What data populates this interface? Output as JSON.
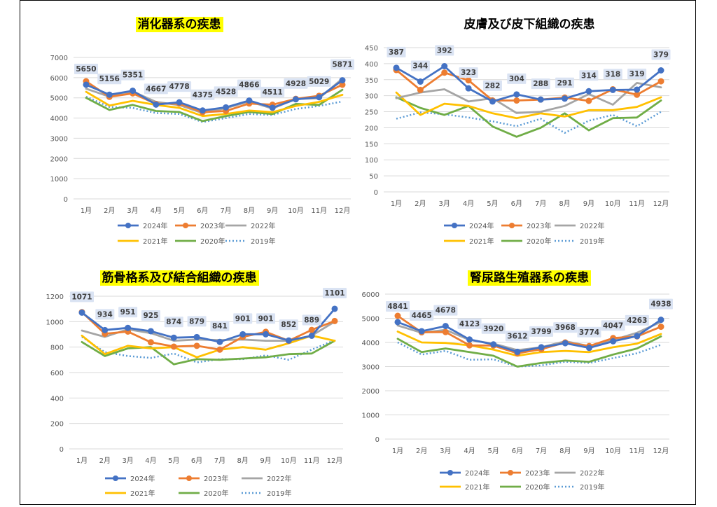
{
  "legend_styles": {
    "2024年": {
      "color": "#4472C4",
      "marker": true,
      "dash": false
    },
    "2023年": {
      "color": "#ED7D31",
      "marker": true,
      "dash": false
    },
    "2022年": {
      "color": "#A5A5A5",
      "marker": false,
      "dash": false
    },
    "2021年": {
      "color": "#FFC000",
      "marker": false,
      "dash": false
    },
    "2020年": {
      "color": "#70AD47",
      "marker": false,
      "dash": false
    },
    "2019年": {
      "color": "#5B9BD5",
      "marker": false,
      "dash": true
    }
  },
  "chart_data": [
    {
      "type": "line",
      "title": "消化器系の疾患",
      "title_highlight": "#FFFF00",
      "categories": [
        "1月",
        "2月",
        "3月",
        "4月",
        "5月",
        "6月",
        "7月",
        "8月",
        "9月",
        "10月",
        "11月",
        "12月"
      ],
      "ylim": [
        0,
        7000
      ],
      "yticks": [
        0,
        1000,
        2000,
        3000,
        4000,
        5000,
        6000,
        7000
      ],
      "grid": true,
      "legend": "bottom",
      "series": [
        {
          "name": "2024年",
          "values": [
            5650,
            5156,
            5351,
            4667,
            4778,
            4375,
            4528,
            4866,
            4511,
            4928,
            5029,
            5871
          ]
        },
        {
          "name": "2023年",
          "values": [
            5820,
            5050,
            5220,
            4700,
            4720,
            4290,
            4350,
            4720,
            4660,
            4950,
            5100,
            5650
          ]
        },
        {
          "name": "2022年",
          "values": [
            5450,
            5060,
            5320,
            4800,
            4640,
            4250,
            4490,
            4820,
            4470,
            4950,
            4980,
            5950
          ]
        },
        {
          "name": "2021年",
          "values": [
            5300,
            4620,
            4850,
            4650,
            4500,
            4100,
            4200,
            4370,
            4290,
            4600,
            4800,
            5150
          ]
        },
        {
          "name": "2020年",
          "values": [
            5000,
            4400,
            4650,
            4350,
            4300,
            3850,
            4100,
            4300,
            4200,
            4700,
            4650,
            5400
          ]
        },
        {
          "name": "2019年",
          "values": [
            5060,
            4550,
            4500,
            4250,
            4200,
            3800,
            4000,
            4200,
            4150,
            4450,
            4600,
            4820
          ]
        }
      ],
      "data_labels": [
        "5650",
        "5156",
        "5351",
        "4667",
        "4778",
        "4375",
        "4528",
        "4866",
        "4511",
        "4928",
        "5029",
        "5871"
      ]
    },
    {
      "type": "line",
      "title": "皮膚及び皮下組織の疾患",
      "title_highlight": "",
      "categories": [
        "1月",
        "2月",
        "3月",
        "4月",
        "5月",
        "6月",
        "7月",
        "8月",
        "9月",
        "10月",
        "11月",
        "12月"
      ],
      "ylim": [
        0,
        450
      ],
      "yticks": [
        0,
        50,
        100,
        150,
        200,
        250,
        300,
        350,
        400,
        450
      ],
      "grid": true,
      "legend": "bottom",
      "series": [
        {
          "name": "2024年",
          "values": [
            387,
            344,
            392,
            323,
            282,
            304,
            288,
            291,
            314,
            318,
            319,
            379
          ]
        },
        {
          "name": "2023年",
          "values": [
            380,
            318,
            372,
            348,
            285,
            285,
            288,
            294,
            284,
            320,
            303,
            345
          ]
        },
        {
          "name": "2022年",
          "values": [
            292,
            310,
            320,
            282,
            292,
            246,
            250,
            268,
            305,
            272,
            340,
            326
          ]
        },
        {
          "name": "2021年",
          "values": [
            310,
            240,
            275,
            268,
            245,
            230,
            245,
            235,
            255,
            255,
            265,
            295
          ]
        },
        {
          "name": "2020年",
          "values": [
            295,
            262,
            240,
            268,
            204,
            172,
            200,
            245,
            192,
            230,
            232,
            285
          ]
        },
        {
          "name": "2019年",
          "values": [
            228,
            248,
            242,
            232,
            220,
            205,
            228,
            184,
            222,
            240,
            205,
            250
          ]
        }
      ],
      "data_labels": [
        "387",
        "344",
        "392",
        "323",
        "282",
        "304",
        "288",
        "291",
        "314",
        "318",
        "319",
        "379"
      ]
    },
    {
      "type": "line",
      "title": "筋骨格系及び結合組織の疾患",
      "title_highlight": "#FFFF00",
      "categories": [
        "1月",
        "2月",
        "3月",
        "4月",
        "5月",
        "6月",
        "7月",
        "8月",
        "9月",
        "10月",
        "11月",
        "12月"
      ],
      "ylim": [
        0,
        1200
      ],
      "yticks": [
        0,
        200,
        400,
        600,
        800,
        1000,
        1200
      ],
      "grid": true,
      "legend": "bottom",
      "series": [
        {
          "name": "2024年",
          "values": [
            1071,
            934,
            951,
            925,
            874,
            879,
            841,
            901,
            901,
            852,
            889,
            1101
          ]
        },
        {
          "name": "2023年",
          "values": [
            1075,
            905,
            922,
            838,
            804,
            810,
            780,
            880,
            920,
            850,
            935,
            1005
          ]
        },
        {
          "name": "2022年",
          "values": [
            930,
            880,
            940,
            910,
            850,
            860,
            855,
            860,
            850,
            850,
            890,
            1000
          ]
        },
        {
          "name": "2021年",
          "values": [
            890,
            745,
            810,
            790,
            800,
            720,
            780,
            800,
            780,
            830,
            890,
            850
          ]
        },
        {
          "name": "2020年",
          "values": [
            840,
            730,
            790,
            800,
            665,
            705,
            700,
            710,
            720,
            745,
            750,
            850
          ]
        },
        {
          "name": "2019年",
          "values": [
            880,
            760,
            730,
            715,
            750,
            680,
            705,
            705,
            735,
            700,
            780,
            855
          ]
        }
      ],
      "data_labels": [
        "1071",
        "934",
        "951",
        "925",
        "874",
        "879",
        "841",
        "901",
        "901",
        "852",
        "889",
        "1101"
      ]
    },
    {
      "type": "line",
      "title": "腎尿路生殖器系の疾患",
      "title_highlight": "#FFFF00",
      "categories": [
        "1月",
        "2月",
        "3月",
        "4月",
        "5月",
        "6月",
        "7月",
        "8月",
        "9月",
        "10月",
        "11月",
        "12月"
      ],
      "ylim": [
        0,
        6000
      ],
      "yticks": [
        0,
        1000,
        2000,
        3000,
        4000,
        5000,
        6000
      ],
      "grid": true,
      "legend": "bottom",
      "series": [
        {
          "name": "2024年",
          "values": [
            4841,
            4465,
            4678,
            4123,
            3920,
            3612,
            3799,
            3968,
            3774,
            4047,
            4263,
            4938
          ]
        },
        {
          "name": "2023年",
          "values": [
            5100,
            4420,
            4430,
            3880,
            3870,
            3550,
            3720,
            4000,
            3850,
            4180,
            4250,
            4650
          ]
        },
        {
          "name": "2022年",
          "values": [
            4700,
            4400,
            4520,
            4100,
            3950,
            3680,
            3800,
            4050,
            3850,
            4100,
            4400,
            4850
          ]
        },
        {
          "name": "2021年",
          "values": [
            4450,
            4000,
            3980,
            3880,
            3700,
            3450,
            3600,
            3650,
            3600,
            3800,
            3950,
            4350
          ]
        },
        {
          "name": "2020年",
          "values": [
            4150,
            3600,
            3750,
            3600,
            3450,
            3000,
            3150,
            3250,
            3200,
            3500,
            3750,
            4250
          ]
        },
        {
          "name": "2019年",
          "values": [
            4000,
            3500,
            3650,
            3280,
            3300,
            3000,
            3050,
            3200,
            3150,
            3350,
            3550,
            3900
          ]
        }
      ],
      "data_labels": [
        "4841",
        "4465",
        "4678",
        "4123",
        "3920",
        "3612",
        "3799",
        "3968",
        "3774",
        "4047",
        "4263",
        "4938"
      ]
    }
  ]
}
